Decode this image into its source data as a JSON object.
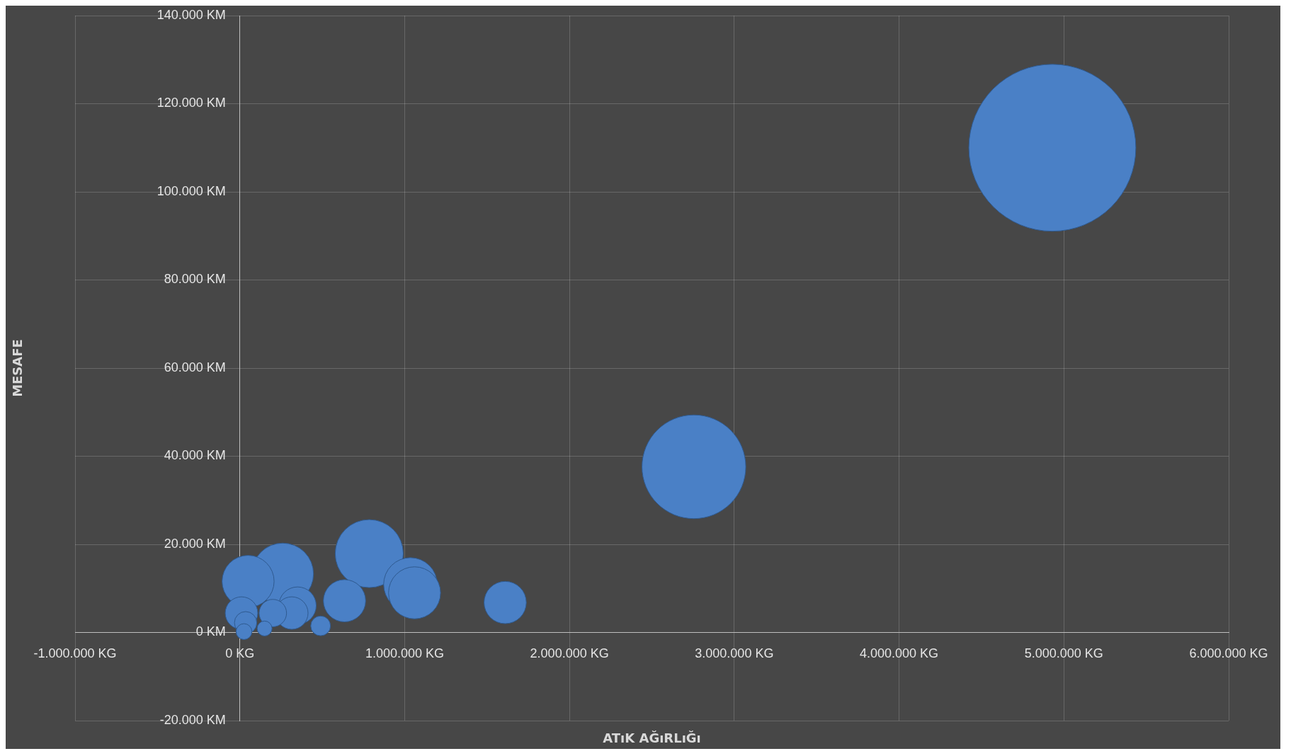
{
  "chart_data": {
    "type": "bubble",
    "xlabel": "ATıK AĞıRLıĞı",
    "ylabel": "MESAFE",
    "color": "#4a80c6",
    "x": [
      4930000,
      2755000,
      785000,
      260000,
      50000,
      1035000,
      1060000,
      635000,
      1610000,
      350000,
      315000,
      200000,
      10000,
      490000,
      150000,
      35000,
      25000
    ],
    "values": [
      110000,
      37600,
      17900,
      13300,
      11600,
      10900,
      9000,
      7200,
      6800,
      6100,
      4400,
      4400,
      4400,
      1500,
      900,
      2200,
      200
    ],
    "sizes": [
      1,
      0.386,
      0.166,
      0.136,
      0.097,
      0.103,
      0.097,
      0.064,
      0.064,
      0.05,
      0.038,
      0.027,
      0.038,
      0.014,
      0.008,
      0.018,
      0.009
    ],
    "xlim": [
      -1000000,
      6000000
    ],
    "xticks": [
      {
        "value": -1000000,
        "label": "-1.000.000 KG"
      },
      {
        "value": 0,
        "label": "0 KG"
      },
      {
        "value": 1000000,
        "label": "1.000.000 KG"
      },
      {
        "value": 2000000,
        "label": "2.000.000 KG"
      },
      {
        "value": 3000000,
        "label": "3.000.000 KG"
      },
      {
        "value": 4000000,
        "label": "4.000.000 KG"
      },
      {
        "value": 5000000,
        "label": "5.000.000 KG"
      },
      {
        "value": 6000000,
        "label": "6.000.000 KG"
      }
    ],
    "ylim": [
      -20000,
      140000
    ],
    "yticks": [
      {
        "value": -20000,
        "label": "-20.000 KM"
      },
      {
        "value": 0,
        "label": "0 KM"
      },
      {
        "value": 20000,
        "label": "20.000 KM"
      },
      {
        "value": 40000,
        "label": "40.000 KM"
      },
      {
        "value": 60000,
        "label": "60.000 KM"
      },
      {
        "value": 80000,
        "label": "80.000 KM"
      },
      {
        "value": 100000,
        "label": "100.000 KM"
      },
      {
        "value": 120000,
        "label": "120.000 KM"
      },
      {
        "value": 140000,
        "label": "140.000 KM"
      }
    ],
    "grid": true,
    "legend": false
  }
}
